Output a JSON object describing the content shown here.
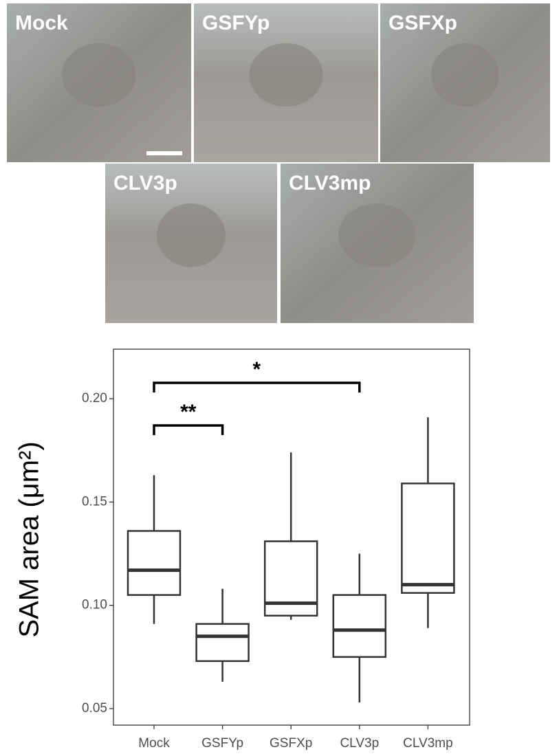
{
  "panels": [
    "Mock",
    "GSFYp",
    "GSFXp",
    "CLV3p",
    "CLV3mp"
  ],
  "chart_data": {
    "type": "box",
    "ylabel": "SAM area (μm²)",
    "categories": [
      "Mock",
      "GSFYp",
      "GSFXp",
      "CLV3p",
      "CLV3mp"
    ],
    "boxes": [
      {
        "whisker_low": 0.091,
        "q1": 0.105,
        "median": 0.117,
        "q3": 0.136,
        "whisker_high": 0.163
      },
      {
        "whisker_low": 0.063,
        "q1": 0.073,
        "median": 0.085,
        "q3": 0.091,
        "whisker_high": 0.108
      },
      {
        "whisker_low": 0.093,
        "q1": 0.095,
        "median": 0.101,
        "q3": 0.131,
        "whisker_high": 0.174
      },
      {
        "whisker_low": 0.053,
        "q1": 0.075,
        "median": 0.088,
        "q3": 0.105,
        "whisker_high": 0.125
      },
      {
        "whisker_low": 0.089,
        "q1": 0.106,
        "median": 0.11,
        "q3": 0.159,
        "whisker_high": 0.191
      }
    ],
    "annotations": [
      {
        "text": "**",
        "between": [
          "Mock",
          "GSFYp"
        ]
      },
      {
        "text": "*",
        "between": [
          "Mock",
          "CLV3p"
        ]
      }
    ],
    "ylim": [
      0.042,
      0.224
    ],
    "yticks": [
      0.05,
      {
        "value": 0.1,
        "label": "0.10"
      },
      0.15,
      {
        "value": 0.2,
        "label": "0.20"
      }
    ],
    "color": "#333333"
  }
}
